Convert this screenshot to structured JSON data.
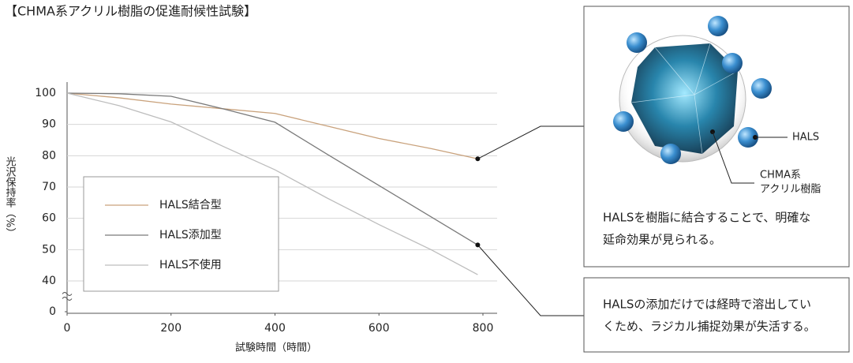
{
  "title": "【CHMA系アクリル樹脂の促進耐候性試験】",
  "chart_data": {
    "type": "line",
    "y_label": "光沢保持率（%）",
    "x_label": "試験時間（時間）",
    "xlim": [
      0,
      800
    ],
    "xticks": [
      0,
      200,
      400,
      600,
      800
    ],
    "ylim": [
      0,
      100
    ],
    "yticks": [
      0,
      40,
      50,
      60,
      70,
      80,
      90,
      100
    ],
    "y_break": [
      0,
      40
    ],
    "grid": true,
    "series": [
      {
        "name": "HALS結合型",
        "color": "#c9a27c",
        "x": [
          0,
          100,
          200,
          300,
          400,
          500,
          600,
          700,
          790
        ],
        "values": [
          100,
          98.5,
          96.5,
          95,
          93.5,
          89.5,
          85.5,
          82.3,
          79
        ]
      },
      {
        "name": "HALS添加型",
        "color": "#7a7a7a",
        "x": [
          0,
          100,
          200,
          300,
          400,
          500,
          600,
          700,
          790
        ],
        "values": [
          100,
          99.8,
          99,
          95,
          90.7,
          80.5,
          70.5,
          60.5,
          51.5
        ]
      },
      {
        "name": "HALS不使用",
        "color": "#bdbdbd",
        "x": [
          0,
          100,
          200,
          300,
          400,
          500,
          600,
          700,
          790
        ],
        "values": [
          100,
          96,
          90.8,
          83,
          75.5,
          66.5,
          58,
          50,
          42
        ]
      }
    ]
  },
  "diagram": {
    "hals_label": "HALS",
    "resin_label": [
      "CHMA系",
      "アクリル樹脂"
    ]
  },
  "callouts": [
    {
      "lines": [
        "HALSを樹脂に結合することで、明確な",
        "延命効果が見られる。"
      ]
    },
    {
      "lines": [
        "HALSの添加だけでは経時で溶出してい",
        "くため、ラジカル捕捉効果が失活する。"
      ]
    }
  ]
}
